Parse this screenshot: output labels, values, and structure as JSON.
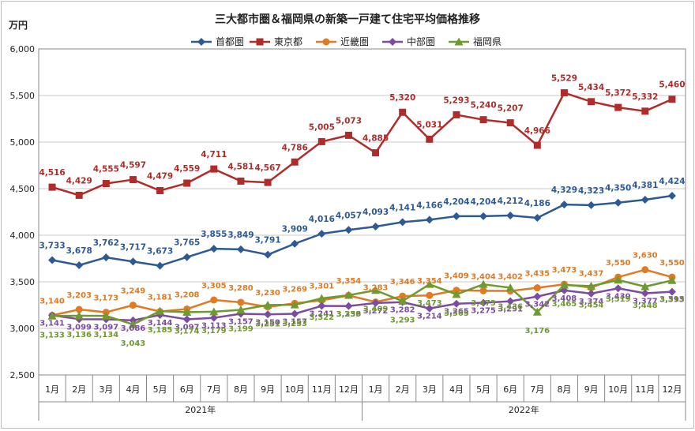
{
  "chart_data": {
    "type": "line",
    "title": "三大都市圏＆福岡県の新築一戸建て住宅平均価格推移",
    "ylabel": "万円",
    "xlabel": "",
    "ylim": [
      2500,
      6000
    ],
    "yticks": [
      "2,500",
      "3,000",
      "3,500",
      "4,000",
      "4,500",
      "5,000",
      "5,500",
      "6,000"
    ],
    "ytick_values": [
      2500,
      3000,
      3500,
      4000,
      4500,
      5000,
      5500,
      6000
    ],
    "categories": [
      "1月",
      "2月",
      "3月",
      "4月",
      "5月",
      "6月",
      "7月",
      "8月",
      "9月",
      "10月",
      "11月",
      "12月",
      "1月",
      "2月",
      "3月",
      "4月",
      "5月",
      "6月",
      "7月",
      "8月",
      "9月",
      "10月",
      "11月",
      "12月"
    ],
    "year_groups": [
      {
        "label": "2021年",
        "span": 12
      },
      {
        "label": "2022年",
        "span": 12
      }
    ],
    "grid": true,
    "legend_position": "top",
    "series": [
      {
        "name": "首都圏",
        "color": "#2e5a94",
        "marker": "diamond",
        "values": [
          3733,
          3678,
          3762,
          3717,
          3673,
          3765,
          3855,
          3849,
          3791,
          3909,
          4016,
          4057,
          4093,
          4141,
          4166,
          4204,
          4204,
          4212,
          4186,
          4329,
          4323,
          4350,
          4381,
          4424
        ]
      },
      {
        "name": "東京都",
        "color": "#b02c2b",
        "marker": "square",
        "values": [
          4516,
          4429,
          4555,
          4597,
          4479,
          4559,
          4711,
          4581,
          4567,
          4786,
          5005,
          5073,
          4885,
          5320,
          5031,
          5293,
          5240,
          5207,
          4966,
          5529,
          5434,
          5372,
          5332,
          5460
        ]
      },
      {
        "name": "近畿圏",
        "color": "#e07a23",
        "marker": "circle",
        "values": [
          3140,
          3203,
          3173,
          3249,
          3181,
          3208,
          3305,
          3280,
          3230,
          3269,
          3301,
          3354,
          3283,
          3346,
          3354,
          3409,
          3404,
          3402,
          3435,
          3473,
          3437,
          3550,
          3630,
          3550
        ]
      },
      {
        "name": "中部圏",
        "color": "#7d4ba0",
        "marker": "diamond",
        "values": [
          3141,
          3099,
          3097,
          3086,
          3144,
          3097,
          3113,
          3157,
          3150,
          3157,
          3241,
          3239,
          3272,
          3282,
          3214,
          3265,
          3275,
          3291,
          3342,
          3408,
          3374,
          3430,
          3377,
          3393
        ]
      },
      {
        "name": "福岡県",
        "color": "#6e9a2f",
        "marker": "triangle",
        "values": [
          3133,
          3136,
          3134,
          3043,
          3185,
          3174,
          3179,
          3199,
          3251,
          3253,
          3322,
          3356,
          3409,
          3293,
          3473,
          3365,
          3473,
          3436,
          3176,
          3465,
          3454,
          3519,
          3448,
          3515
        ]
      }
    ]
  }
}
